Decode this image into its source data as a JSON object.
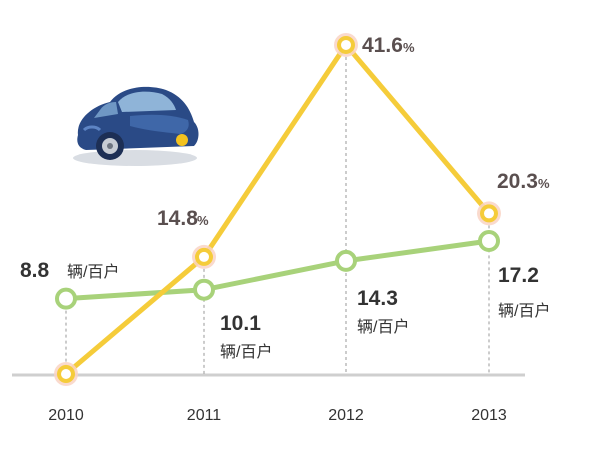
{
  "chart_data": {
    "type": "line",
    "categories": [
      "2010",
      "2011",
      "2012",
      "2013"
    ],
    "series": [
      {
        "name": "",
        "color": "#f5cc3a",
        "values": [
          0,
          14.8,
          41.6,
          20.3
        ],
        "labels": [
          "",
          "14.8",
          "41.6",
          "20.3"
        ],
        "suffix": "%"
      },
      {
        "name": "",
        "color": "#a8d27a",
        "values": [
          8.8,
          10.1,
          14.3,
          17.2
        ],
        "labels": [
          "8.8",
          "10.1",
          "14.3",
          "17.2"
        ],
        "unit": "辆/百户"
      }
    ],
    "title": "",
    "xlabel": "",
    "ylabel": "",
    "grid": "dashed vertical drop lines at each year"
  },
  "icons": {
    "car": "car-illustration"
  },
  "colors": {
    "growth_line": "#f5cc3a",
    "ownership_line": "#a8d27a",
    "marker_halo": "#f9d3c4",
    "baseline": "#cfcfcf"
  }
}
